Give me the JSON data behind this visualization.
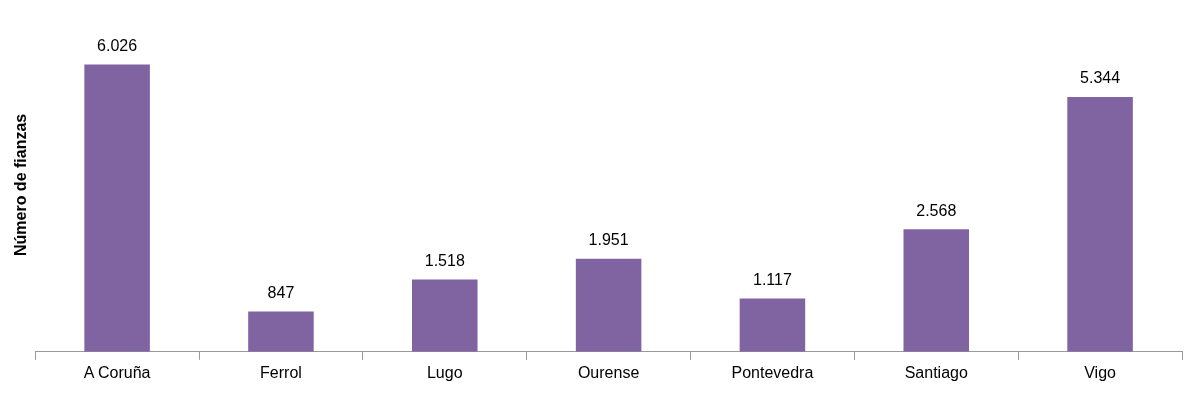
{
  "chart_data": {
    "type": "bar",
    "ylabel": "Número de fianzas",
    "categories": [
      "A Coruña",
      "Ferrol",
      "Lugo",
      "Ourense",
      "Pontevedra",
      "Santiago",
      "Vigo"
    ],
    "values": [
      6026,
      847,
      1518,
      1951,
      1117,
      2568,
      5344
    ],
    "value_labels": [
      "6.026",
      "847",
      "1.518",
      "1.951",
      "1.117",
      "2.568",
      "5.344"
    ],
    "color": "#8064a2",
    "grid": false,
    "legend": false
  }
}
